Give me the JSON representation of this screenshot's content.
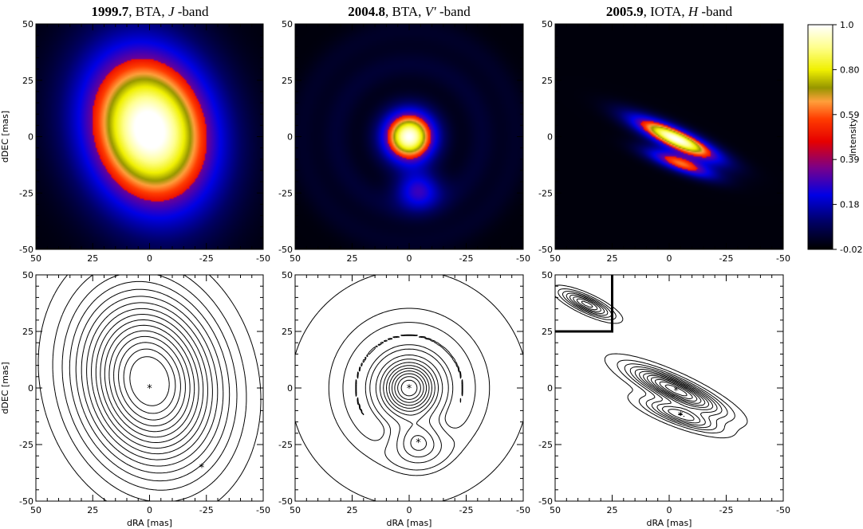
{
  "chart_data": {
    "type": "heatmap",
    "colorbar": {
      "label": "Intensity",
      "tick_labels": [
        "1.0",
        "0.80",
        "0.59",
        "0.39",
        "0.18",
        "-0.020"
      ],
      "range": [
        -0.02,
        1.0
      ]
    },
    "axes": {
      "xlabel": "dRA [mas]",
      "ylabel": "dDEC [mas]",
      "xlim": [
        50,
        -50
      ],
      "ylim": [
        -50,
        50
      ],
      "xticks": [
        "50",
        "25",
        "0",
        "-25",
        "-50"
      ],
      "yticks": [
        "50",
        "25",
        "0",
        "-25",
        "-50"
      ]
    },
    "panels": [
      {
        "title": {
          "epoch": "1999.7",
          "rest": ", BTA, ",
          "band": "J",
          "suffix": " -band"
        },
        "components": [
          {
            "x": 0,
            "y": 3,
            "sx": 20,
            "sy": 26,
            "theta": -15,
            "amp": 1.05
          }
        ],
        "contours_at": {
          "center": [
            0,
            0
          ],
          "center_radius_mas": 9.5
        },
        "markers": [
          {
            "x": 0,
            "y": 0
          },
          {
            "x": -23,
            "y": -35
          }
        ]
      },
      {
        "title": {
          "epoch": "2004.8",
          "rest": ", BTA, ",
          "band": "V′",
          "suffix": " -band"
        },
        "components": [
          {
            "x": 0,
            "y": 0,
            "sx": 8,
            "sy": 8,
            "theta": 0,
            "amp": 1.0
          },
          {
            "x": -4,
            "y": -24,
            "sx": 7,
            "sy": 6,
            "theta": 0,
            "amp": 0.38
          }
        ],
        "rings": [
          {
            "r": 32,
            "width": 5,
            "amp": 0.07
          },
          {
            "r": 47,
            "width": 5,
            "amp": 0.05
          }
        ],
        "markers": [
          {
            "x": 0,
            "y": 0
          },
          {
            "x": -4,
            "y": -24
          }
        ]
      },
      {
        "title": {
          "epoch": "2005.9",
          "rest": ", IOTA, ",
          "band": "H",
          "suffix": " -band"
        },
        "components": [
          {
            "x": -3,
            "y": -1,
            "sx": 14,
            "sy": 3.2,
            "theta": 25,
            "amp": 1.0
          },
          {
            "x": -5,
            "y": -12,
            "sx": 11,
            "sy": 2.6,
            "theta": 20,
            "amp": 0.6
          }
        ],
        "inset_beam": {
          "x": 36,
          "y": 37,
          "sx": 8,
          "sy": 2.2,
          "theta": 25
        },
        "markers": [
          {
            "x": -3,
            "y": -1
          },
          {
            "x": -5,
            "y": -12
          }
        ]
      }
    ]
  }
}
